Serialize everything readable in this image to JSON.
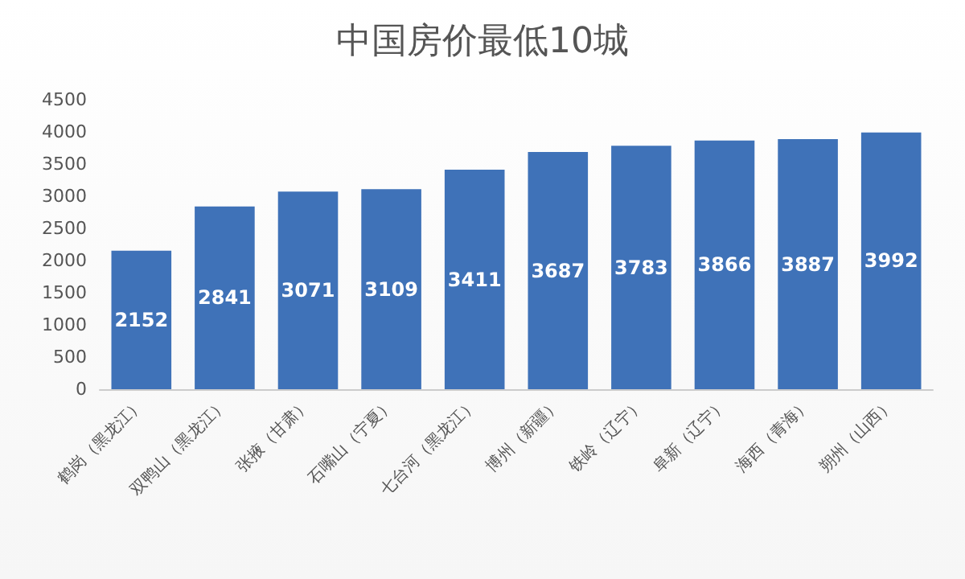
{
  "chart_data": {
    "type": "bar",
    "title": "中国房价最低10城",
    "categories": [
      "鹤岗（黑龙江）",
      "双鸭山（黑龙江）",
      "张掖（甘肃）",
      "石嘴山（宁夏）",
      "七台河（黑龙江）",
      "博州（新疆）",
      "铁岭（辽宁）",
      "阜新（辽宁）",
      "海西（青海）",
      "朔州（山西）"
    ],
    "values": [
      2152,
      2841,
      3071,
      3109,
      3411,
      3687,
      3783,
      3866,
      3887,
      3992
    ],
    "color": "#3f72b8",
    "ylim": [
      0,
      4500
    ],
    "yticks": [
      0,
      500,
      1000,
      1500,
      2000,
      2500,
      3000,
      3500,
      4000,
      4500
    ],
    "grid": false,
    "data_labels": true
  }
}
